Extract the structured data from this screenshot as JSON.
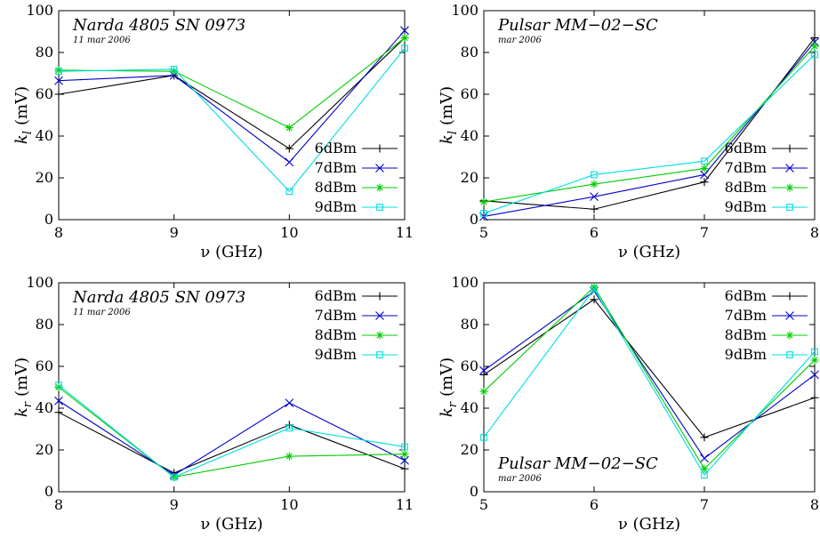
{
  "chart_data": [
    {
      "type": "line",
      "title": "Narda 4805 SN 0973",
      "subtitle": "11 mar 2006",
      "xlabel": "ν (GHz)",
      "ylabel_base": "k",
      "ylabel_sub": "l",
      "ylabel_unit": "(mV)",
      "x": [
        8,
        9,
        10,
        11
      ],
      "xticks": [
        "8",
        "9",
        "10",
        "11"
      ],
      "xlim": [
        8,
        11
      ],
      "ylim": [
        0,
        100
      ],
      "yticks": [
        "0",
        "20",
        "40",
        "60",
        "80",
        "100"
      ],
      "legend_position": "lower-right",
      "series": [
        {
          "name": "6dBm",
          "color": "#000000",
          "marker": "plus",
          "values": [
            60,
            69,
            34,
            87
          ]
        },
        {
          "name": "7dBm",
          "color": "#0000cc",
          "marker": "x",
          "values": [
            66.5,
            69,
            27.5,
            90.5
          ]
        },
        {
          "name": "8dBm",
          "color": "#00cc00",
          "marker": "star",
          "values": [
            71.5,
            71,
            44,
            87
          ]
        },
        {
          "name": "9dBm",
          "color": "#00dddd",
          "marker": "square",
          "values": [
            71,
            72,
            13.5,
            82
          ]
        }
      ]
    },
    {
      "type": "line",
      "title": "Pulsar MM−02−SC",
      "subtitle": "mar 2006",
      "xlabel": "ν (GHz)",
      "ylabel_base": "k",
      "ylabel_sub": "l",
      "ylabel_unit": "(mV)",
      "x": [
        5,
        6,
        7,
        8
      ],
      "xticks": [
        "5",
        "6",
        "7",
        "8"
      ],
      "xlim": [
        5,
        8
      ],
      "ylim": [
        0,
        100
      ],
      "yticks": [
        "0",
        "20",
        "40",
        "60",
        "80",
        "100"
      ],
      "legend_position": "lower-right",
      "series": [
        {
          "name": "6dBm",
          "color": "#000000",
          "marker": "plus",
          "values": [
            9,
            5,
            18,
            87
          ]
        },
        {
          "name": "7dBm",
          "color": "#0000cc",
          "marker": "x",
          "values": [
            1.5,
            11,
            21.5,
            85
          ]
        },
        {
          "name": "8dBm",
          "color": "#00cc00",
          "marker": "star",
          "values": [
            8.5,
            17,
            24.5,
            83
          ]
        },
        {
          "name": "9dBm",
          "color": "#00dddd",
          "marker": "square",
          "values": [
            3,
            21.5,
            28,
            79
          ]
        }
      ]
    },
    {
      "type": "line",
      "title": "Narda 4805 SN 0973",
      "subtitle": "11 mar 2006",
      "xlabel": "ν (GHz)",
      "ylabel_base": "k",
      "ylabel_sub": "r",
      "ylabel_unit": "(mV)",
      "x": [
        8,
        9,
        10,
        11
      ],
      "xticks": [
        "8",
        "9",
        "10",
        "11"
      ],
      "xlim": [
        8,
        11
      ],
      "ylim": [
        0,
        100
      ],
      "yticks": [
        "0",
        "20",
        "40",
        "60",
        "80",
        "100"
      ],
      "legend_position": "top-right",
      "series": [
        {
          "name": "6dBm",
          "color": "#000000",
          "marker": "plus",
          "values": [
            38,
            9,
            32,
            11
          ]
        },
        {
          "name": "7dBm",
          "color": "#0000cc",
          "marker": "x",
          "values": [
            43.5,
            8,
            42.5,
            15
          ]
        },
        {
          "name": "8dBm",
          "color": "#00cc00",
          "marker": "star",
          "values": [
            50,
            7,
            17,
            18
          ]
        },
        {
          "name": "9dBm",
          "color": "#00dddd",
          "marker": "square",
          "values": [
            51,
            7,
            30.5,
            21.5
          ]
        }
      ]
    },
    {
      "type": "line",
      "title": "Pulsar MM−02−SC",
      "subtitle": "mar 2006",
      "xlabel": "ν (GHz)",
      "ylabel_base": "k",
      "ylabel_sub": "r",
      "ylabel_unit": "(mV)",
      "x": [
        5,
        6,
        7,
        8
      ],
      "xticks": [
        "5",
        "6",
        "7",
        "8"
      ],
      "xlim": [
        5,
        8
      ],
      "ylim": [
        0,
        100
      ],
      "yticks": [
        "0",
        "20",
        "40",
        "60",
        "80",
        "100"
      ],
      "legend_position": "top-right",
      "title_position": "bottom-left",
      "series": [
        {
          "name": "6dBm",
          "color": "#000000",
          "marker": "plus",
          "values": [
            56,
            92,
            26,
            45
          ]
        },
        {
          "name": "7dBm",
          "color": "#0000cc",
          "marker": "x",
          "values": [
            58,
            96,
            16,
            56
          ]
        },
        {
          "name": "8dBm",
          "color": "#00cc00",
          "marker": "star",
          "values": [
            48,
            98,
            11,
            63
          ]
        },
        {
          "name": "9dBm",
          "color": "#00dddd",
          "marker": "square",
          "values": [
            26,
            97,
            8,
            67
          ]
        }
      ]
    }
  ]
}
